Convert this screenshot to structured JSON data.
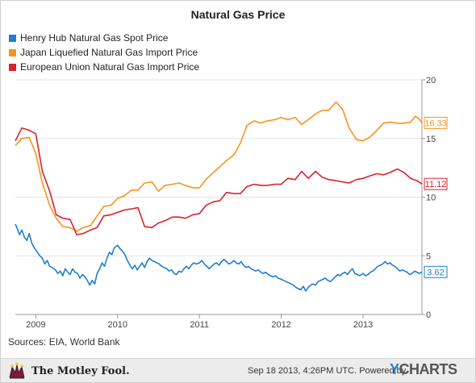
{
  "chart_data": {
    "type": "line",
    "title": "Natural Gas Price",
    "xlabel": "",
    "ylabel": "",
    "x_range": [
      2008.75,
      2013.72
    ],
    "ylim": [
      0,
      20
    ],
    "y_ticks": [
      0,
      5,
      10,
      15,
      20
    ],
    "y_axis_side": "right",
    "x_ticks": [
      {
        "x": 2009,
        "label": "2009"
      },
      {
        "x": 2010,
        "label": "2010"
      },
      {
        "x": 2011,
        "label": "2011"
      },
      {
        "x": 2012,
        "label": "2012"
      },
      {
        "x": 2013,
        "label": "2013"
      }
    ],
    "grid": "horizontal",
    "legend_position": "top-left",
    "series": [
      {
        "name": "Henry Hub Natural Gas Spot Price",
        "color": "#1f7fcf",
        "last_value": "3.62",
        "points": [
          [
            2008.75,
            7.7
          ],
          [
            2008.77,
            7.4
          ],
          [
            2008.8,
            6.8
          ],
          [
            2008.83,
            7.2
          ],
          [
            2008.86,
            6.6
          ],
          [
            2008.89,
            6.3
          ],
          [
            2008.92,
            6.9
          ],
          [
            2008.95,
            6.1
          ],
          [
            2008.98,
            5.7
          ],
          [
            2009.02,
            5.3
          ],
          [
            2009.05,
            5.0
          ],
          [
            2009.08,
            4.8
          ],
          [
            2009.11,
            4.3
          ],
          [
            2009.14,
            4.6
          ],
          [
            2009.17,
            4.1
          ],
          [
            2009.2,
            4.0
          ],
          [
            2009.24,
            3.8
          ],
          [
            2009.27,
            3.5
          ],
          [
            2009.3,
            3.7
          ],
          [
            2009.33,
            3.3
          ],
          [
            2009.36,
            3.9
          ],
          [
            2009.39,
            3.6
          ],
          [
            2009.42,
            3.4
          ],
          [
            2009.45,
            3.9
          ],
          [
            2009.48,
            3.6
          ],
          [
            2009.51,
            3.5
          ],
          [
            2009.54,
            3.1
          ],
          [
            2009.57,
            3.4
          ],
          [
            2009.6,
            3.2
          ],
          [
            2009.63,
            2.9
          ],
          [
            2009.66,
            2.5
          ],
          [
            2009.69,
            2.9
          ],
          [
            2009.72,
            2.6
          ],
          [
            2009.75,
            3.5
          ],
          [
            2009.78,
            3.9
          ],
          [
            2009.81,
            4.4
          ],
          [
            2009.84,
            4.1
          ],
          [
            2009.87,
            4.8
          ],
          [
            2009.9,
            5.3
          ],
          [
            2009.93,
            5.1
          ],
          [
            2009.96,
            5.7
          ],
          [
            2010.0,
            5.9
          ],
          [
            2010.03,
            5.6
          ],
          [
            2010.06,
            5.4
          ],
          [
            2010.09,
            5.1
          ],
          [
            2010.12,
            4.6
          ],
          [
            2010.15,
            4.2
          ],
          [
            2010.18,
            3.9
          ],
          [
            2010.21,
            4.2
          ],
          [
            2010.24,
            3.8
          ],
          [
            2010.27,
            4.1
          ],
          [
            2010.3,
            4.4
          ],
          [
            2010.33,
            4.0
          ],
          [
            2010.36,
            4.5
          ],
          [
            2010.39,
            4.8
          ],
          [
            2010.42,
            4.6
          ],
          [
            2010.45,
            4.5
          ],
          [
            2010.48,
            4.4
          ],
          [
            2010.51,
            4.3
          ],
          [
            2010.54,
            4.1
          ],
          [
            2010.57,
            4.0
          ],
          [
            2010.6,
            3.9
          ],
          [
            2010.63,
            3.7
          ],
          [
            2010.66,
            3.8
          ],
          [
            2010.69,
            3.5
          ],
          [
            2010.72,
            3.4
          ],
          [
            2010.75,
            3.7
          ],
          [
            2010.78,
            3.6
          ],
          [
            2010.81,
            3.9
          ],
          [
            2010.84,
            4.1
          ],
          [
            2010.87,
            3.9
          ],
          [
            2010.9,
            4.2
          ],
          [
            2010.93,
            4.4
          ],
          [
            2010.96,
            4.3
          ],
          [
            2011.0,
            4.4
          ],
          [
            2011.03,
            4.6
          ],
          [
            2011.06,
            4.3
          ],
          [
            2011.09,
            4.1
          ],
          [
            2011.12,
            3.9
          ],
          [
            2011.15,
            4.1
          ],
          [
            2011.18,
            4.3
          ],
          [
            2011.21,
            4.4
          ],
          [
            2011.24,
            4.2
          ],
          [
            2011.27,
            4.5
          ],
          [
            2011.3,
            4.7
          ],
          [
            2011.33,
            4.5
          ],
          [
            2011.36,
            4.3
          ],
          [
            2011.39,
            4.4
          ],
          [
            2011.42,
            4.6
          ],
          [
            2011.45,
            4.4
          ],
          [
            2011.48,
            4.3
          ],
          [
            2011.51,
            4.5
          ],
          [
            2011.54,
            4.2
          ],
          [
            2011.57,
            4.0
          ],
          [
            2011.6,
            4.1
          ],
          [
            2011.63,
            3.9
          ],
          [
            2011.66,
            3.8
          ],
          [
            2011.69,
            3.7
          ],
          [
            2011.72,
            3.8
          ],
          [
            2011.75,
            3.6
          ],
          [
            2011.78,
            3.5
          ],
          [
            2011.81,
            3.6
          ],
          [
            2011.84,
            3.4
          ],
          [
            2011.87,
            3.3
          ],
          [
            2011.9,
            3.2
          ],
          [
            2011.93,
            3.3
          ],
          [
            2011.96,
            3.1
          ],
          [
            2012.0,
            3.0
          ],
          [
            2012.03,
            2.9
          ],
          [
            2012.06,
            2.8
          ],
          [
            2012.09,
            2.7
          ],
          [
            2012.12,
            2.6
          ],
          [
            2012.15,
            2.5
          ],
          [
            2012.18,
            2.3
          ],
          [
            2012.21,
            2.2
          ],
          [
            2012.24,
            2.1
          ],
          [
            2012.27,
            2.4
          ],
          [
            2012.3,
            2.0
          ],
          [
            2012.33,
            2.3
          ],
          [
            2012.36,
            2.5
          ],
          [
            2012.39,
            2.6
          ],
          [
            2012.42,
            2.5
          ],
          [
            2012.45,
            2.8
          ],
          [
            2012.48,
            2.9
          ],
          [
            2012.51,
            3.0
          ],
          [
            2012.54,
            3.1
          ],
          [
            2012.57,
            2.9
          ],
          [
            2012.6,
            2.8
          ],
          [
            2012.63,
            3.0
          ],
          [
            2012.66,
            3.2
          ],
          [
            2012.69,
            3.4
          ],
          [
            2012.72,
            3.3
          ],
          [
            2012.75,
            3.5
          ],
          [
            2012.78,
            3.6
          ],
          [
            2012.81,
            3.4
          ],
          [
            2012.84,
            3.7
          ],
          [
            2012.87,
            3.9
          ],
          [
            2012.9,
            3.5
          ],
          [
            2012.93,
            3.4
          ],
          [
            2012.96,
            3.3
          ],
          [
            2013.0,
            3.5
          ],
          [
            2013.03,
            3.3
          ],
          [
            2013.06,
            3.4
          ],
          [
            2013.09,
            3.6
          ],
          [
            2013.12,
            3.7
          ],
          [
            2013.15,
            3.9
          ],
          [
            2013.18,
            4.1
          ],
          [
            2013.21,
            4.2
          ],
          [
            2013.24,
            4.3
          ],
          [
            2013.27,
            4.5
          ],
          [
            2013.3,
            4.3
          ],
          [
            2013.33,
            4.4
          ],
          [
            2013.36,
            4.2
          ],
          [
            2013.39,
            4.1
          ],
          [
            2013.42,
            3.9
          ],
          [
            2013.45,
            3.7
          ],
          [
            2013.48,
            3.8
          ],
          [
            2013.51,
            3.7
          ],
          [
            2013.54,
            3.6
          ],
          [
            2013.57,
            3.4
          ],
          [
            2013.6,
            3.5
          ],
          [
            2013.63,
            3.7
          ],
          [
            2013.66,
            3.6
          ],
          [
            2013.69,
            3.5
          ],
          [
            2013.72,
            3.62
          ]
        ]
      },
      {
        "name": "Japan Liquefied Natural Gas Import Price",
        "color": "#f7941d",
        "last_value": "16.33",
        "points": [
          [
            2008.75,
            14.4
          ],
          [
            2008.83,
            15.0
          ],
          [
            2008.92,
            15.1
          ],
          [
            2009.0,
            13.7
          ],
          [
            2009.08,
            11.2
          ],
          [
            2009.17,
            9.3
          ],
          [
            2009.25,
            8.2
          ],
          [
            2009.33,
            7.5
          ],
          [
            2009.42,
            7.4
          ],
          [
            2009.5,
            7.1
          ],
          [
            2009.58,
            7.4
          ],
          [
            2009.67,
            7.6
          ],
          [
            2009.75,
            8.4
          ],
          [
            2009.83,
            9.2
          ],
          [
            2009.92,
            9.3
          ],
          [
            2010.0,
            9.9
          ],
          [
            2010.08,
            10.1
          ],
          [
            2010.17,
            10.6
          ],
          [
            2010.25,
            10.6
          ],
          [
            2010.33,
            11.2
          ],
          [
            2010.42,
            11.3
          ],
          [
            2010.5,
            10.5
          ],
          [
            2010.58,
            11.0
          ],
          [
            2010.67,
            11.1
          ],
          [
            2010.75,
            11.2
          ],
          [
            2010.83,
            11.0
          ],
          [
            2010.92,
            10.8
          ],
          [
            2011.0,
            10.8
          ],
          [
            2011.08,
            11.5
          ],
          [
            2011.17,
            12.1
          ],
          [
            2011.25,
            12.6
          ],
          [
            2011.33,
            13.1
          ],
          [
            2011.42,
            13.6
          ],
          [
            2011.5,
            14.6
          ],
          [
            2011.58,
            16.1
          ],
          [
            2011.67,
            16.5
          ],
          [
            2011.75,
            16.3
          ],
          [
            2011.83,
            16.5
          ],
          [
            2011.92,
            16.6
          ],
          [
            2012.0,
            16.8
          ],
          [
            2012.08,
            16.6
          ],
          [
            2012.17,
            16.8
          ],
          [
            2012.25,
            16.2
          ],
          [
            2012.33,
            16.6
          ],
          [
            2012.42,
            17.1
          ],
          [
            2012.5,
            17.4
          ],
          [
            2012.58,
            17.4
          ],
          [
            2012.67,
            18.1
          ],
          [
            2012.75,
            17.5
          ],
          [
            2012.83,
            15.9
          ],
          [
            2012.92,
            14.9
          ],
          [
            2013.0,
            14.8
          ],
          [
            2013.08,
            15.1
          ],
          [
            2013.17,
            15.7
          ],
          [
            2013.25,
            16.3
          ],
          [
            2013.33,
            16.4
          ],
          [
            2013.42,
            16.3
          ],
          [
            2013.5,
            16.3
          ],
          [
            2013.58,
            16.4
          ],
          [
            2013.64,
            16.9
          ],
          [
            2013.68,
            16.7
          ],
          [
            2013.72,
            16.33
          ]
        ]
      },
      {
        "name": "European Union Natural Gas Import Price",
        "color": "#d8232a",
        "last_value": "11.12",
        "points": [
          [
            2008.75,
            14.8
          ],
          [
            2008.83,
            15.9
          ],
          [
            2008.92,
            15.7
          ],
          [
            2009.0,
            15.4
          ],
          [
            2009.08,
            12.2
          ],
          [
            2009.17,
            10.5
          ],
          [
            2009.25,
            8.5
          ],
          [
            2009.33,
            8.2
          ],
          [
            2009.42,
            8.1
          ],
          [
            2009.5,
            6.8
          ],
          [
            2009.58,
            6.9
          ],
          [
            2009.67,
            7.2
          ],
          [
            2009.75,
            7.4
          ],
          [
            2009.83,
            8.4
          ],
          [
            2009.92,
            8.5
          ],
          [
            2010.0,
            8.7
          ],
          [
            2010.08,
            8.9
          ],
          [
            2010.17,
            9.0
          ],
          [
            2010.25,
            9.1
          ],
          [
            2010.33,
            7.5
          ],
          [
            2010.42,
            7.4
          ],
          [
            2010.5,
            7.8
          ],
          [
            2010.58,
            8.0
          ],
          [
            2010.67,
            8.3
          ],
          [
            2010.75,
            8.3
          ],
          [
            2010.83,
            8.2
          ],
          [
            2010.92,
            8.5
          ],
          [
            2011.0,
            8.6
          ],
          [
            2011.08,
            9.3
          ],
          [
            2011.17,
            9.6
          ],
          [
            2011.25,
            9.7
          ],
          [
            2011.33,
            10.4
          ],
          [
            2011.42,
            10.3
          ],
          [
            2011.5,
            10.3
          ],
          [
            2011.58,
            10.9
          ],
          [
            2011.67,
            11.1
          ],
          [
            2011.75,
            11.0
          ],
          [
            2011.83,
            11.0
          ],
          [
            2011.92,
            11.1
          ],
          [
            2012.0,
            11.1
          ],
          [
            2012.08,
            11.6
          ],
          [
            2012.17,
            11.5
          ],
          [
            2012.25,
            12.2
          ],
          [
            2012.33,
            11.6
          ],
          [
            2012.42,
            12.2
          ],
          [
            2012.5,
            11.7
          ],
          [
            2012.58,
            11.5
          ],
          [
            2012.67,
            11.4
          ],
          [
            2012.75,
            11.3
          ],
          [
            2012.83,
            11.2
          ],
          [
            2012.92,
            11.5
          ],
          [
            2013.0,
            11.6
          ],
          [
            2013.08,
            11.8
          ],
          [
            2013.17,
            12.0
          ],
          [
            2013.25,
            11.9
          ],
          [
            2013.33,
            12.1
          ],
          [
            2013.42,
            12.4
          ],
          [
            2013.5,
            12.1
          ],
          [
            2013.58,
            11.6
          ],
          [
            2013.66,
            11.4
          ],
          [
            2013.72,
            11.12
          ]
        ]
      }
    ]
  },
  "footer": {
    "sources": "Sources: EIA, World Bank",
    "brand": "The Motley Fool.",
    "timestamp": "Sep 18 2013, 4:26PM UTC.  Powered by",
    "powered_y": "Y",
    "powered_rest": "CHARTS"
  }
}
